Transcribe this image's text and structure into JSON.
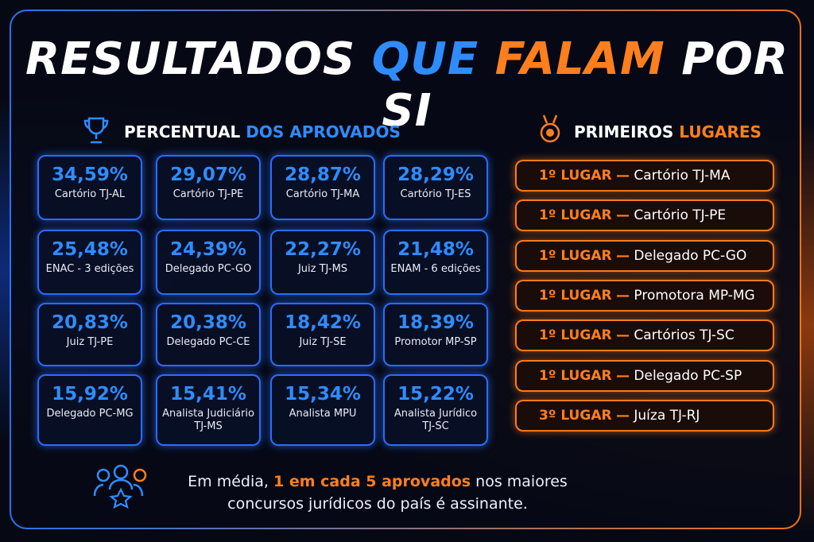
{
  "title": {
    "part1": "RESULTADOS",
    "part2": "QUE",
    "part3": "FALAM",
    "part4": "POR SI"
  },
  "percentages": {
    "heading_main": "PERCENTUAL",
    "heading_accent": "DOS APROVADOS",
    "cards": [
      {
        "value": "34,59%",
        "label": "Cartório TJ-AL"
      },
      {
        "value": "29,07%",
        "label": "Cartório TJ-PE"
      },
      {
        "value": "28,87%",
        "label": "Cartório TJ-MA"
      },
      {
        "value": "28,29%",
        "label": "Cartório TJ-ES"
      },
      {
        "value": "25,48%",
        "label": "ENAC - 3 edições"
      },
      {
        "value": "24,39%",
        "label": "Delegado PC-GO"
      },
      {
        "value": "22,27%",
        "label": "Juiz TJ-MS"
      },
      {
        "value": "21,48%",
        "label": "ENAM - 6 edições"
      },
      {
        "value": "20,83%",
        "label": "Juiz TJ-PE"
      },
      {
        "value": "20,38%",
        "label": "Delegado PC-CE"
      },
      {
        "value": "18,42%",
        "label": "Juiz TJ-SE"
      },
      {
        "value": "18,39%",
        "label": "Promotor MP-SP"
      },
      {
        "value": "15,92%",
        "label": "Delegado PC-MG"
      },
      {
        "value": "15,41%",
        "label": "Analista Judiciário TJ-MS"
      },
      {
        "value": "15,34%",
        "label": "Analista MPU"
      },
      {
        "value": "15,22%",
        "label": "Analista Jurídico TJ-SC"
      }
    ]
  },
  "rankings": {
    "heading_main": "PRIMEIROS",
    "heading_accent": "LUGARES",
    "separator": "—",
    "items": [
      {
        "place": "1º LUGAR",
        "name": "Cartório TJ-MA"
      },
      {
        "place": "1º LUGAR",
        "name": "Cartório TJ-PE"
      },
      {
        "place": "1º LUGAR",
        "name": "Delegado PC-GO"
      },
      {
        "place": "1º LUGAR",
        "name": "Promotora MP-MG"
      },
      {
        "place": "1º LUGAR",
        "name": "Cartórios TJ-SC"
      },
      {
        "place": "1º LUGAR",
        "name": "Delegado PC-SP"
      },
      {
        "place": "3º LUGAR",
        "name": "Juíza TJ-RJ"
      }
    ]
  },
  "footer": {
    "prefix": "Em média,",
    "highlight": "1 em cada 5 aprovados",
    "suffix": "nos maiores concursos jurídicos do país é assinante."
  }
}
